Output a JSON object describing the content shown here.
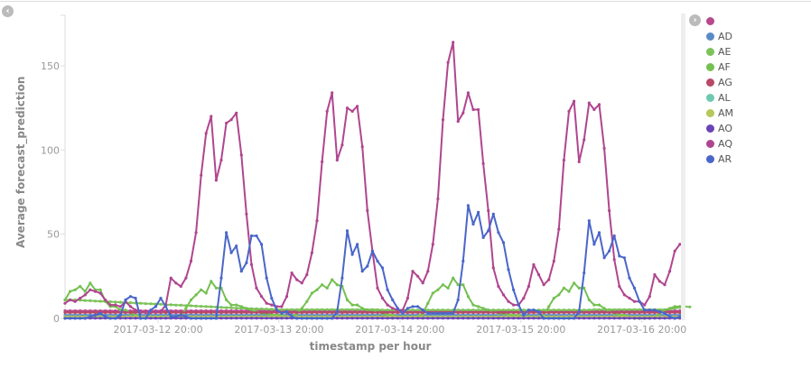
{
  "chart_data": {
    "type": "line",
    "title": "",
    "xlabel": "timestamp per hour",
    "ylabel": "Average forecast_prediction",
    "ylim": [
      0,
      180
    ],
    "x_start": "2017-03-12 01:00",
    "x_interval": "1 hour",
    "point_count": 123,
    "yticks": [
      0,
      50,
      100,
      150
    ],
    "xticks": [
      {
        "index": 19,
        "label": "2017-03-12 20:00"
      },
      {
        "index": 43,
        "label": "2017-03-13 20:00"
      },
      {
        "index": 67,
        "label": "2017-03-14 20:00"
      },
      {
        "index": 91,
        "label": "2017-03-15 20:00"
      },
      {
        "index": 115,
        "label": "2017-03-16 20:00"
      }
    ],
    "legend_position": "right",
    "series": [
      {
        "name": "",
        "color": "#b9488c",
        "values": [
          4.5,
          4.5,
          4.5,
          4.5,
          4.5,
          4.5,
          4.5,
          4.5,
          4.5,
          4.5,
          4.5,
          4.5,
          4.5,
          4.5,
          4.5,
          4.5,
          4.5,
          4.5,
          4.5,
          4.5,
          4.5,
          4.5,
          4.5,
          4.5,
          4.5,
          4.5,
          4.5,
          4.5,
          4.5,
          4.5,
          4.5,
          4.5,
          4.5,
          4.5,
          4.5,
          4.5,
          4.5,
          4.5,
          4.5,
          4.5,
          4.5,
          4.5,
          4.5,
          4.5,
          4.5,
          4.5,
          4.5,
          4.5,
          4.5,
          4.5,
          4.5,
          4.5,
          4.5,
          4.5,
          4.5,
          4.5,
          4.5,
          4.5,
          4.5,
          4.5,
          4.5,
          4.5,
          4.5,
          4.5,
          4.5,
          4.5,
          4.5,
          4.5,
          4.5,
          4.5,
          4.5,
          4.5,
          4.5,
          4.5,
          4.5,
          4.5,
          4.5,
          4.5,
          4.5,
          4.5,
          4.5,
          4.5,
          4.5,
          4.5,
          4.5,
          4.5,
          4.5,
          4.5,
          4.5,
          4.5,
          4.5,
          4.5,
          4.5,
          4.5,
          4.5,
          4.5,
          4.5,
          4.5,
          4.5,
          4.5,
          4.5,
          4.5,
          4.5,
          4.5,
          4.5,
          4.5,
          4.5,
          4.5,
          4.5,
          4.5,
          4.5,
          4.5,
          4.5,
          4.5,
          4.5,
          4.5,
          4.5,
          4.5,
          4.5,
          4.5,
          4.5,
          4.5,
          4.5
        ]
      },
      {
        "name": "AD",
        "color": "#5a8ac6",
        "values": [
          2,
          2,
          2,
          2,
          2,
          2,
          2,
          2,
          2,
          2,
          2,
          2,
          2,
          2,
          2,
          2,
          2,
          2,
          2,
          2,
          2,
          2,
          2,
          2,
          2,
          2,
          2,
          2,
          2,
          2,
          2,
          2,
          2,
          2,
          2,
          2,
          2,
          2,
          2,
          2,
          2,
          2,
          2,
          2,
          2,
          2,
          2,
          2,
          2,
          2,
          2,
          2,
          2,
          2,
          2,
          2,
          2,
          2,
          2,
          2,
          2,
          2,
          2,
          2,
          2,
          2,
          2,
          2,
          2,
          2,
          2,
          2,
          2,
          2,
          2,
          2,
          2,
          2,
          2,
          2,
          2,
          2,
          2,
          2,
          2,
          2,
          2,
          2,
          2,
          2,
          2,
          2,
          2,
          2,
          2,
          2,
          2,
          2,
          2,
          2,
          2,
          2,
          2,
          2,
          2,
          2,
          2,
          2,
          2,
          2,
          2,
          2,
          2,
          2,
          2,
          2,
          2,
          2,
          2,
          2,
          2,
          2,
          2
        ]
      },
      {
        "name": "AE",
        "color": "#7dc35b",
        "values": [
          11,
          11,
          11,
          10.8,
          10.6,
          10.5,
          10.3,
          10.2,
          10,
          9.9,
          9.7,
          9.6,
          9.4,
          9.3,
          9.1,
          9,
          8.8,
          8.7,
          8.5,
          8.4,
          8.2,
          8.1,
          7.9,
          7.8,
          7.6,
          7.5,
          7.3,
          7.2,
          7,
          6.9,
          6.7,
          6.6,
          6.4,
          6.3,
          6.1,
          6,
          5.9,
          5.8,
          5.7,
          5.6,
          5.5,
          5.4,
          5.3,
          5.2,
          5.2,
          5.2,
          5.2,
          5.2,
          5.2,
          5.2,
          5.2,
          5.2,
          5.2,
          5.2,
          5.2,
          5.2,
          5.2,
          5.2,
          5.2,
          5.2,
          5.2,
          5.2,
          5.2,
          5,
          5,
          5,
          5,
          5,
          5,
          5,
          5,
          5,
          5,
          5,
          5,
          5,
          5,
          5,
          5,
          5,
          5,
          5,
          5,
          5,
          5,
          5,
          5,
          5,
          5,
          5,
          5,
          5,
          5,
          5,
          5,
          5,
          5,
          5,
          5,
          5,
          5,
          5,
          5,
          5,
          5,
          5.2,
          5.2,
          5.2,
          5.2,
          5.2,
          5.2,
          5.2,
          5.2,
          5.2,
          5.2,
          5.2,
          5.2,
          5.2,
          5.2,
          5.2,
          5.5,
          6,
          6.5,
          7,
          6.8
        ]
      },
      {
        "name": "AF",
        "color": "#74c050",
        "values": [
          11,
          16,
          17,
          19,
          16,
          21,
          17,
          17,
          10,
          7,
          7,
          5,
          5,
          3,
          2,
          1,
          1,
          1,
          1,
          1,
          1,
          1,
          1,
          1,
          6,
          11,
          14,
          17,
          15,
          22,
          18,
          18,
          11,
          8,
          8,
          7,
          6,
          5,
          4,
          3,
          3,
          2,
          2,
          2,
          1,
          1,
          3,
          6,
          10,
          15,
          17,
          20,
          18,
          23,
          20,
          19,
          11,
          8,
          8,
          6,
          5,
          5,
          4,
          3,
          2,
          2,
          1,
          1,
          1,
          1,
          1,
          3,
          9,
          15,
          17,
          20,
          18,
          24,
          20,
          20,
          13,
          8,
          7,
          6,
          5,
          4,
          3,
          3,
          2,
          2,
          2,
          1,
          1,
          1,
          1,
          2,
          7,
          12,
          14,
          18,
          16,
          21,
          18,
          18,
          11,
          8,
          8,
          6,
          4,
          3,
          2,
          2,
          1,
          0,
          0,
          0,
          0,
          1,
          3,
          5,
          6,
          7,
          7
        ]
      },
      {
        "name": "AG",
        "color": "#b74866",
        "values": [
          3.5,
          3.5,
          3.5,
          3.5,
          3.5,
          3.5,
          3.5,
          3.5,
          3.5,
          3.5,
          3.5,
          3.5,
          3.5,
          3.5,
          3.5,
          3.5,
          3.5,
          3.5,
          3.5,
          3.5,
          3.5,
          3.5,
          3.5,
          3.5,
          3.5,
          3.5,
          3.5,
          3.5,
          3.5,
          3.5,
          3.5,
          3.5,
          3.5,
          3.5,
          3.5,
          3.5,
          3.5,
          3.5,
          3.5,
          3.5,
          3.5,
          3.5,
          3.5,
          3.5,
          3.5,
          3.5,
          3.5,
          3.5,
          3.5,
          3.5,
          3.5,
          3.5,
          3.5,
          3.5,
          3.5,
          3.5,
          3.5,
          3.5,
          3.5,
          3.5,
          3.5,
          3.5,
          3.5,
          3.5,
          3.5,
          3.5,
          3.5,
          3.5,
          3.5,
          3.5,
          3.5,
          3.5,
          3.5,
          3.5,
          3.5,
          3.5,
          3.5,
          3.5,
          3.5,
          3.5,
          3.5,
          3.5,
          3.5,
          3.5,
          3.5,
          3.5,
          3.5,
          3.5,
          3.5,
          3.5,
          3.5,
          3.5,
          3.5,
          3.5,
          3.5,
          3.5,
          3.5,
          3.5,
          3.5,
          3.5,
          3.5,
          3.5,
          3.5,
          3.5,
          3.5,
          3.5,
          3.5,
          3.5,
          3.5,
          3.5,
          3.5,
          3.5,
          3.5,
          3.5,
          3.5,
          3.5,
          3.5,
          3.5,
          3.5,
          3.5,
          3.5,
          3.5,
          3.5
        ]
      },
      {
        "name": "AL",
        "color": "#6dcab0",
        "values": [
          0.4,
          0.4,
          0.4,
          0.4,
          0.4,
          0.4,
          0.4,
          0.4,
          0.4,
          0.4,
          0.4,
          0.4,
          0.4,
          0.4,
          0.4,
          0.4,
          0.4,
          0.4,
          0.4,
          0.4,
          0.4,
          0.4,
          0.4,
          0.4,
          0.4,
          0.4,
          0.4,
          0.4,
          0.4,
          0.4,
          0.4,
          0.4,
          0.4,
          0.4,
          0.4,
          0.4,
          0.4,
          0.4,
          0.4,
          0.4,
          0.4,
          0.4,
          0.4,
          0.4,
          0.4,
          0.4,
          0.4,
          0.4,
          0.4,
          0.4,
          0.4,
          0.4,
          0.4,
          0.4,
          0.4,
          0.4,
          0.4,
          0.4,
          0.4,
          0.4,
          0.4,
          0.4,
          0.4,
          0.4,
          0.4,
          0.4,
          0.4,
          0.4,
          0.4,
          0.4,
          0.4,
          0.4,
          0.4,
          0.4,
          0.4,
          0.4,
          0.4,
          0.4,
          0.4,
          0.4,
          0.4,
          0.4,
          0.4,
          0.4,
          0.4,
          0.4,
          0.4,
          0.4,
          0.4,
          0.4,
          0.4,
          0.4,
          0.4,
          0.4,
          0.4,
          0.4,
          0.4,
          0.4,
          0.4,
          0.4,
          0.4,
          0.4,
          0.4,
          0.4,
          0.4,
          0.4,
          0.4,
          0.4,
          0.4,
          0.4,
          0.4,
          0.4,
          0.4,
          0.4,
          0.4,
          0.4,
          0.4,
          0.4,
          0.4,
          0.4,
          0.4,
          0.4,
          0.4
        ]
      },
      {
        "name": "AM",
        "color": "#b5c85a",
        "values": [
          1,
          1,
          1,
          1,
          1,
          1,
          1,
          1,
          1,
          1,
          1,
          1,
          1,
          1,
          1,
          1,
          1,
          1,
          1,
          1,
          1,
          1,
          1,
          1,
          1,
          1,
          1,
          1,
          1,
          1,
          1,
          1,
          1,
          1,
          1,
          1,
          1,
          1,
          1,
          1,
          1,
          1,
          1,
          1,
          1,
          1,
          1,
          1,
          1,
          1,
          1,
          1,
          1,
          1,
          1,
          1,
          1,
          1,
          1,
          1,
          1,
          1,
          1,
          1,
          1,
          1,
          1,
          1,
          1,
          1,
          1,
          1,
          1,
          1,
          1,
          1,
          1,
          1,
          1,
          1,
          1,
          1,
          1,
          1,
          1,
          1,
          1,
          1,
          1,
          1,
          1,
          1,
          1,
          1,
          1,
          1,
          1,
          1,
          1,
          1,
          1,
          1,
          1,
          1,
          1,
          1,
          1,
          1,
          1,
          1,
          1,
          1,
          1,
          1,
          1,
          1,
          1,
          1,
          1,
          1,
          1,
          1,
          1
        ]
      },
      {
        "name": "AO",
        "color": "#6a44b8",
        "values": [
          0.1,
          0.1,
          0.1,
          0.1,
          0.1,
          0.1,
          0.1,
          0.1,
          0.1,
          0.1,
          0.1,
          0.1,
          0.1,
          0.1,
          0.1,
          0.1,
          0.1,
          0.1,
          0.1,
          0.1,
          0.1,
          0.1,
          0.1,
          0.1,
          0.1,
          0.1,
          0.1,
          0.1,
          0.1,
          0.1,
          0.1,
          0.1,
          0.1,
          0.1,
          0.1,
          0.1,
          0.1,
          0.1,
          0.1,
          0.1,
          0.1,
          0.1,
          0.1,
          0.1,
          0.1,
          0.1,
          0.1,
          0.1,
          0.1,
          0.1,
          0.1,
          0.1,
          0.1,
          0.1,
          0.1,
          0.1,
          0.1,
          0.1,
          0.1,
          0.1,
          0.1,
          0.1,
          0.1,
          0.1,
          0.1,
          0.1,
          0.1,
          0.1,
          0.1,
          0.1,
          0.1,
          0.1,
          0.1,
          0.1,
          0.1,
          0.1,
          0.1,
          0.1,
          0.1,
          0.1,
          0.1,
          0.1,
          0.1,
          0.1,
          0.1,
          0.1,
          0.1,
          0.1,
          0.1,
          0.1,
          0.1,
          0.1,
          0.1,
          0.1,
          0.1,
          0.1,
          0.1,
          0.1,
          0.1,
          0.1,
          0.1,
          0.1,
          0.1,
          0.1,
          0.1,
          0.1,
          0.1,
          0.1,
          0.1,
          0.1,
          0.1,
          0.1,
          0.1,
          0.1,
          0.1,
          0.1,
          0.1,
          0.1,
          0.1,
          0.1,
          0.1,
          0.1,
          0.1
        ]
      },
      {
        "name": "AQ",
        "color": "#b0458f",
        "values": [
          9,
          11,
          10,
          12,
          14,
          17,
          16,
          15,
          11,
          8,
          8,
          7,
          10,
          7,
          5,
          4,
          4,
          4,
          4,
          4,
          8,
          24,
          21,
          19,
          24,
          34,
          51,
          85,
          110,
          120,
          82,
          94,
          116,
          118,
          122,
          97,
          62,
          32,
          18,
          13,
          9,
          8,
          7,
          7,
          13,
          27,
          23,
          21,
          26,
          39,
          58,
          93,
          123,
          134,
          94,
          103,
          125,
          123,
          126,
          102,
          64,
          40,
          18,
          12,
          8,
          6,
          5,
          5,
          12,
          28,
          25,
          21,
          28,
          44,
          71,
          118,
          152,
          164,
          117,
          122,
          134,
          124,
          124,
          92,
          64,
          30,
          19,
          14,
          10,
          8,
          8,
          12,
          19,
          32,
          26,
          20,
          23,
          34,
          53,
          94,
          123,
          129,
          93,
          106,
          128,
          124,
          127,
          101,
          64,
          35,
          19,
          14,
          12,
          10,
          10,
          8,
          13,
          26,
          22,
          20,
          28,
          40,
          44
        ]
      },
      {
        "name": "AR",
        "color": "#4a66c9",
        "values": [
          0,
          0,
          0,
          0,
          0,
          1,
          2,
          3,
          1,
          0,
          0,
          2,
          11,
          13,
          12,
          0,
          0,
          5,
          7,
          12,
          7,
          1,
          1,
          2,
          1,
          0,
          0,
          0,
          0,
          0,
          0,
          24,
          51,
          39,
          43,
          28,
          33,
          49,
          49,
          44,
          24,
          12,
          5,
          3,
          4,
          1,
          0,
          0,
          0,
          0,
          0,
          0,
          0,
          0,
          4,
          24,
          52,
          38,
          44,
          28,
          31,
          40,
          34,
          30,
          17,
          11,
          6,
          3,
          6,
          7,
          7,
          5,
          3,
          3,
          3,
          3,
          3,
          3,
          11,
          34,
          67,
          56,
          63,
          48,
          52,
          62,
          51,
          45,
          29,
          17,
          8,
          2,
          5,
          5,
          4,
          0,
          0,
          0,
          0,
          0,
          0,
          0,
          4,
          27,
          58,
          44,
          51,
          36,
          40,
          49,
          37,
          36,
          24,
          18,
          10,
          5,
          5,
          5,
          4,
          3,
          1,
          0,
          1
        ]
      }
    ]
  }
}
